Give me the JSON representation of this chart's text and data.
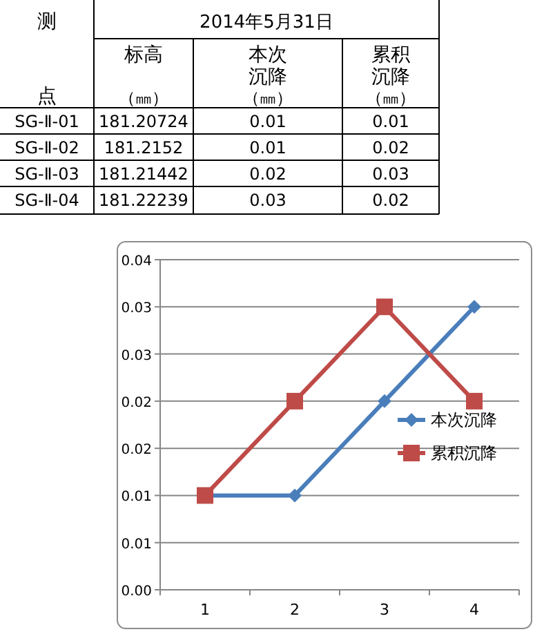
{
  "chart_data": {
    "type": "line",
    "categories": [
      "1",
      "2",
      "3",
      "4"
    ],
    "series": [
      {
        "name": "本次沉降",
        "color": "#4a7ebb",
        "values": [
          0.01,
          0.01,
          0.02,
          0.03
        ],
        "marker": "diamond"
      },
      {
        "name": "累积沉降",
        "color": "#be4b48",
        "values": [
          0.01,
          0.02,
          0.03,
          0.02
        ],
        "marker": "square"
      }
    ],
    "ylim": [
      0,
      0.035
    ],
    "yticks": [
      {
        "value": 0,
        "label": "0.00"
      },
      {
        "value": 0.005,
        "label": "0.01"
      },
      {
        "value": 0.01,
        "label": "0.01"
      },
      {
        "value": 0.015,
        "label": "0.02"
      },
      {
        "value": 0.02,
        "label": "0.02"
      },
      {
        "value": 0.025,
        "label": "0.03"
      },
      {
        "value": 0.03,
        "label": "0.03"
      },
      {
        "value": 0.035,
        "label": "0.04"
      }
    ],
    "grid": "y",
    "legend": "right",
    "annotations": [
      "测",
      "2014年5月31日",
      "标高（㎜）",
      "本次沉降（㎜）",
      "累积沉降（㎜）",
      "点",
      "SG-Ⅱ-01",
      "181.20724",
      "0.01",
      "0.01",
      "SG-Ⅱ-02",
      "181.2152",
      "0.01",
      "0.02",
      "SG-Ⅱ-03",
      "181.21442",
      "0.02",
      "0.03",
      "SG-Ⅱ-04",
      "181.22239",
      "0.03",
      "0.02"
    ]
  }
}
